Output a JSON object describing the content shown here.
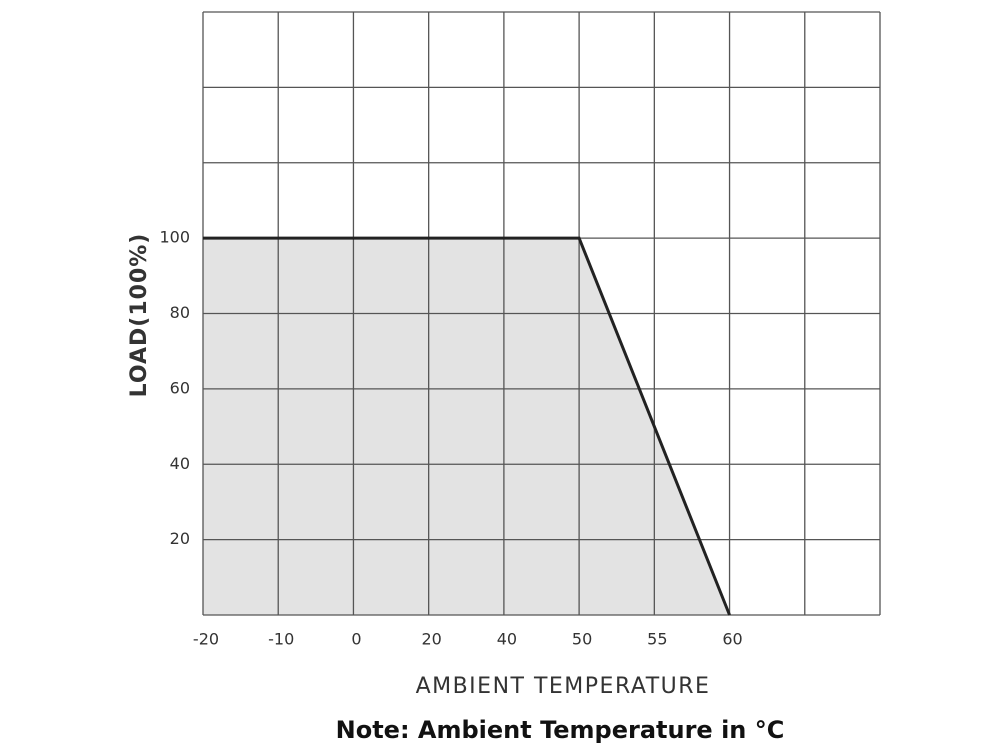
{
  "chart_data": {
    "type": "area",
    "x_label": "AMBIENT TEMPERATURE",
    "y_label": "LOAD(100%)",
    "note": "Note: Ambient Temperature in °C",
    "categories": [
      "-20",
      "-10",
      "0",
      "20",
      "40",
      "50",
      "55",
      "60",
      null,
      null
    ],
    "values": [
      100,
      100,
      100,
      100,
      100,
      100,
      50,
      0,
      null,
      null
    ],
    "color": "#222222",
    "fill": "#e3e3e3",
    "ylim": [
      0,
      160
    ],
    "yticks": [
      20,
      40,
      60,
      80,
      100
    ],
    "grid": true
  }
}
